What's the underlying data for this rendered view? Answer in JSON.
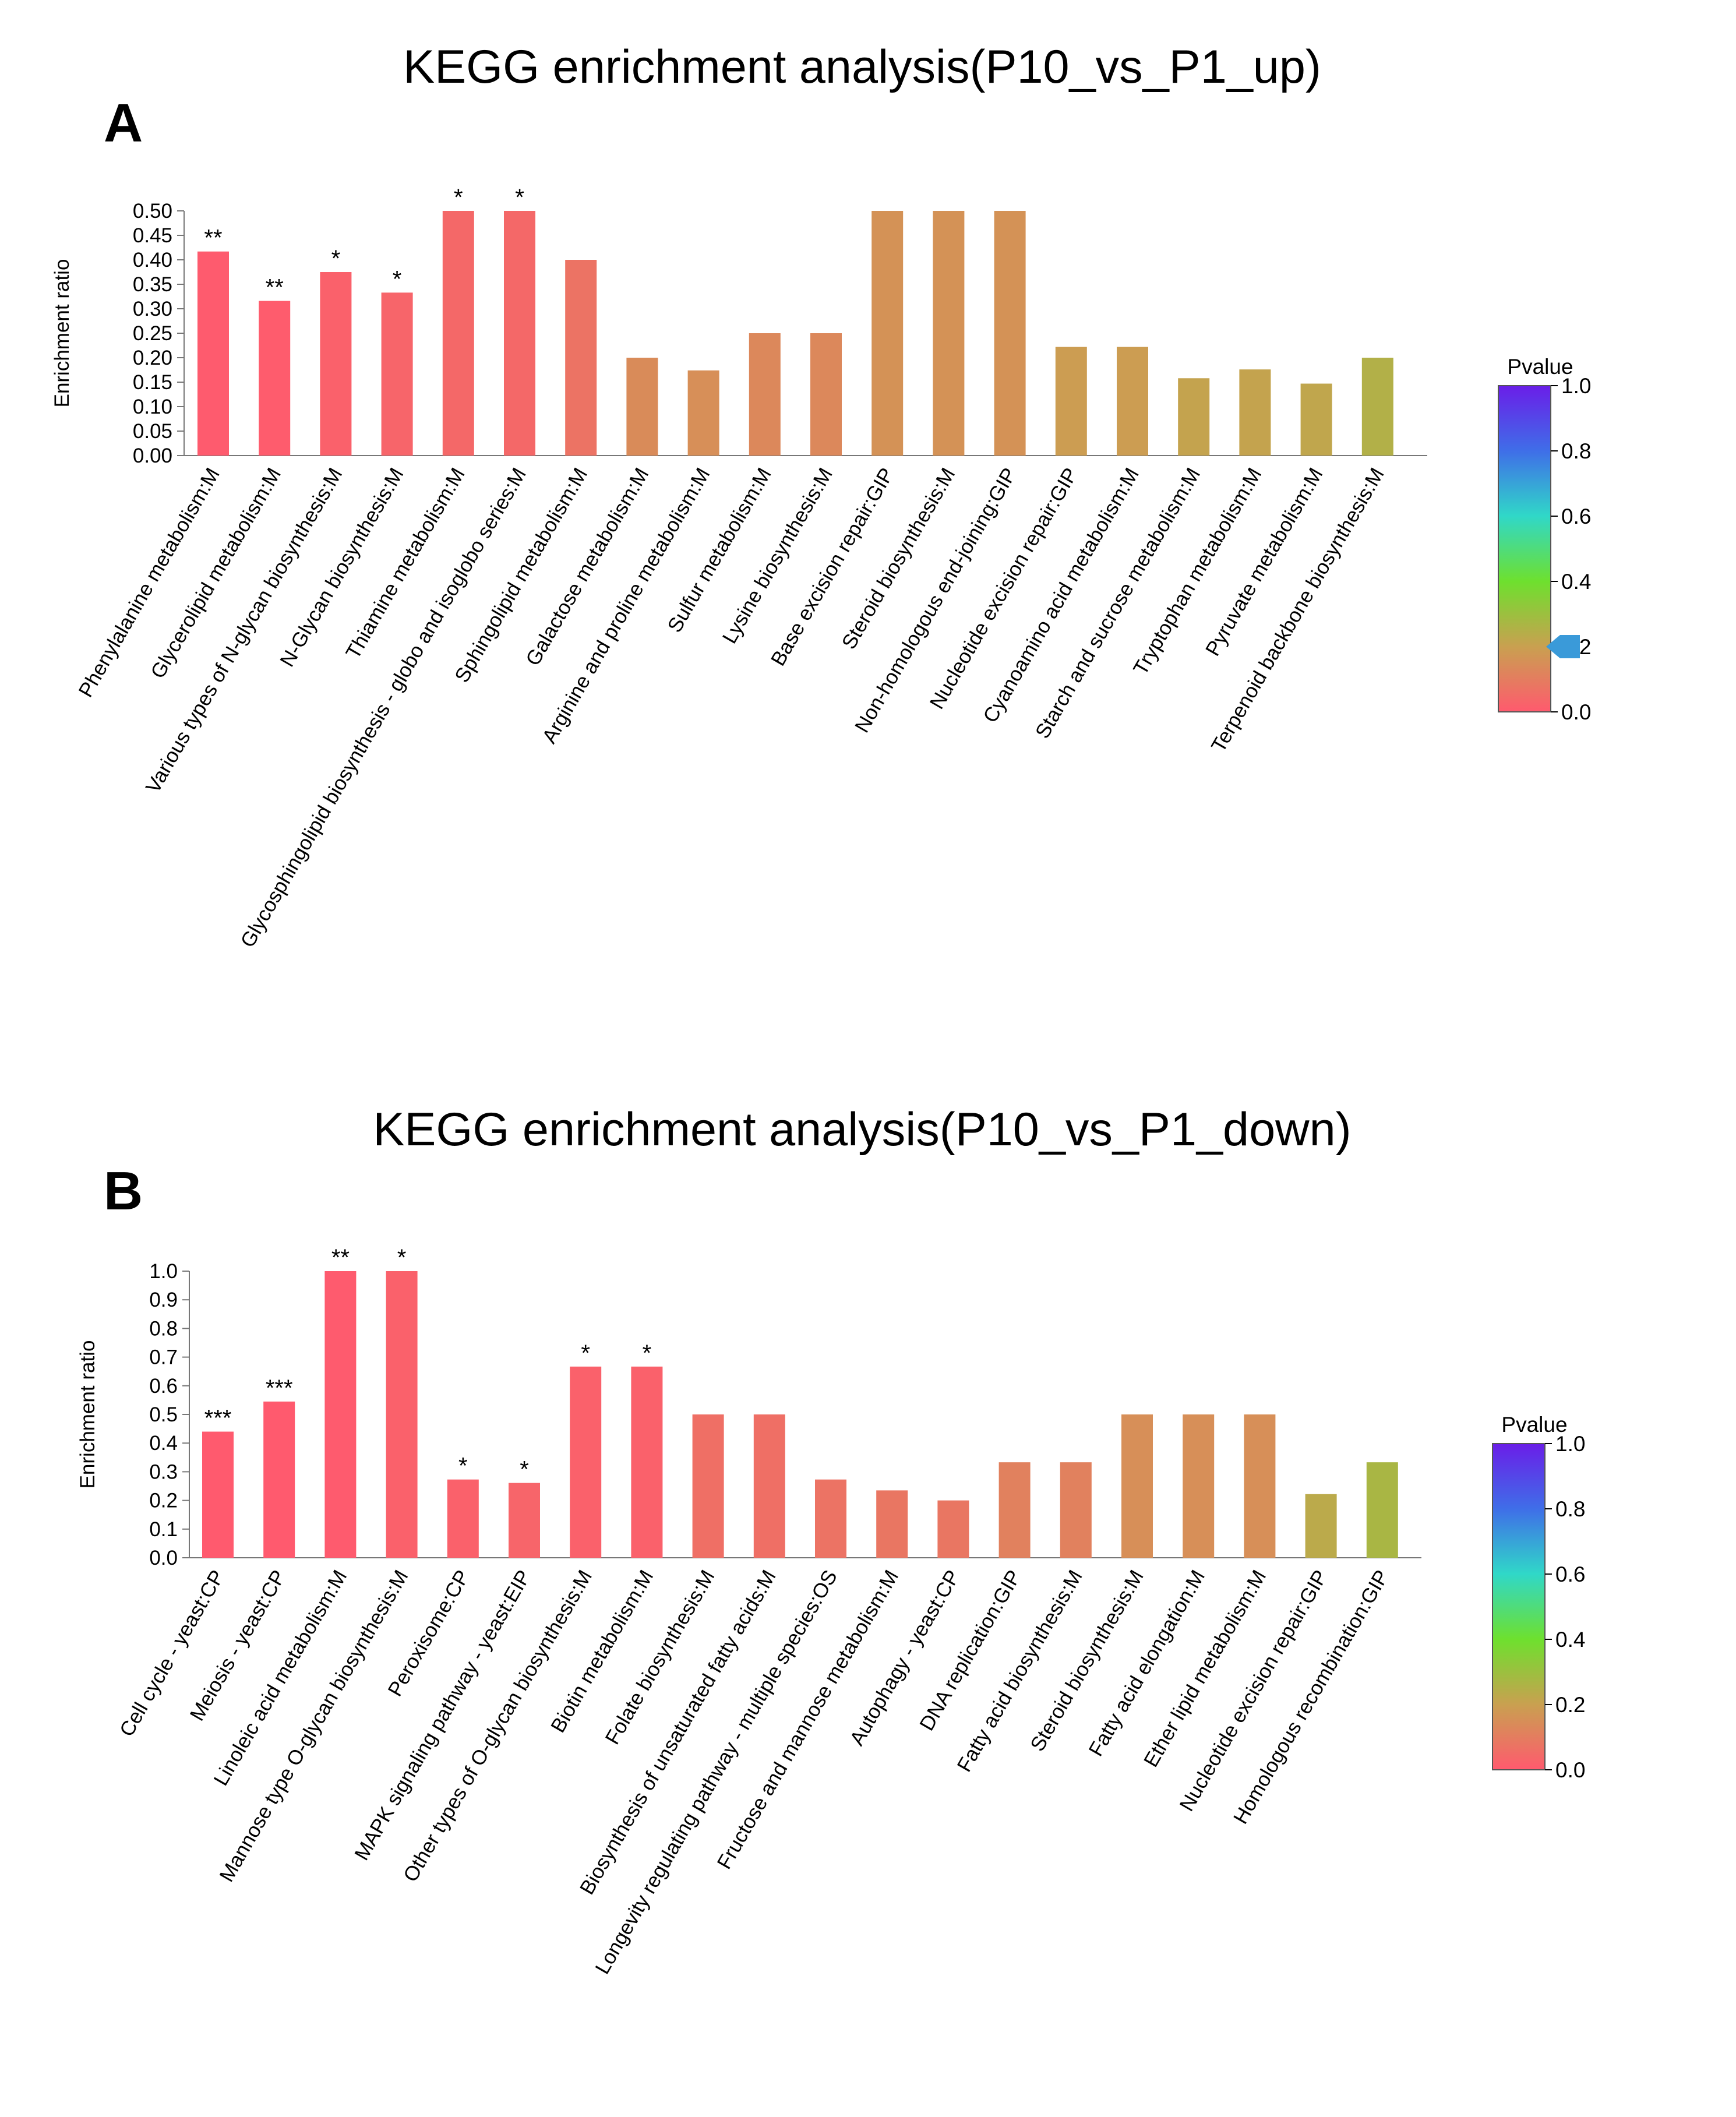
{
  "chart_data": [
    {
      "type": "bar",
      "panel_label": "A",
      "title": "KEGG enrichment analysis(P10_vs_P1_up)",
      "xlabel": "",
      "ylabel": "Enrichment ratio",
      "ylim": [
        0,
        0.5
      ],
      "yticks": [
        "0.00",
        "0.05",
        "0.10",
        "0.15",
        "0.20",
        "0.25",
        "0.30",
        "0.35",
        "0.40",
        "0.45",
        "0.50"
      ],
      "categories": [
        "Phenylalanine metabolism:M",
        "Glycerolipid metabolism:M",
        "Various types of N-glycan biosynthesis:M",
        "N-Glycan biosynthesis:M",
        "Thiamine metabolism:M",
        "Glycosphingolipid biosynthesis - globo and isoglobo series:M",
        "Sphingolipid metabolism:M",
        "Galactose metabolism:M",
        "Arginine and proline metabolism:M",
        "Sulfur metabolism:M",
        "Lysine biosynthesis:M",
        "Base excision repair:GIP",
        "Steroid biosynthesis:M",
        "Non-homologous end-joining:GIP",
        "Nucleotide excision repair:GIP",
        "Cyanoamino acid metabolism:M",
        "Starch and sucrose metabolism:M",
        "Tryptophan metabolism:M",
        "Pyruvate metabolism:M",
        "Terpenoid backbone biosynthesis:M"
      ],
      "values": [
        0.417,
        0.316,
        0.375,
        0.333,
        0.5,
        0.5,
        0.4,
        0.2,
        0.174,
        0.25,
        0.25,
        0.5,
        0.5,
        0.5,
        0.222,
        0.222,
        0.158,
        0.176,
        0.147,
        0.2
      ],
      "pvalues": [
        0.002,
        0.005,
        0.02,
        0.03,
        0.04,
        0.04,
        0.07,
        0.14,
        0.15,
        0.13,
        0.13,
        0.16,
        0.16,
        0.16,
        0.19,
        0.19,
        0.21,
        0.21,
        0.22,
        0.25
      ],
      "significance": [
        "**",
        "**",
        "*",
        "*",
        "*",
        "*",
        "",
        "",
        "",
        "",
        "",
        "",
        "",
        "",
        "",
        "",
        "",
        "",
        "",
        ""
      ],
      "legend": {
        "title": "Pvalue",
        "ticks": [
          "1.0",
          "0.8",
          "0.6",
          "0.4",
          "0.2",
          "0.0"
        ],
        "marker_value": 0.2,
        "marker_color": "#3a9ad9"
      }
    },
    {
      "type": "bar",
      "panel_label": "B",
      "title": "KEGG enrichment analysis(P10_vs_P1_down)",
      "xlabel": "",
      "ylabel": "Enrichment ratio",
      "ylim": [
        0,
        1.0
      ],
      "yticks": [
        "0.0",
        "0.1",
        "0.2",
        "0.3",
        "0.4",
        "0.5",
        "0.6",
        "0.7",
        "0.8",
        "0.9",
        "1.0"
      ],
      "categories": [
        "Cell cycle - yeast:CP",
        "Meiosis - yeast:CP",
        "Linoleic acid metabolism:M",
        "Mannose type O-glycan biosynthesis:M",
        "Peroxisome:CP",
        "MAPK signaling pathway - yeast:EIP",
        "Other types of O-glycan biosynthesis:M",
        "Biotin metabolism:M",
        "Folate biosynthesis:M",
        "Biosynthesis of unsaturated fatty acids:M",
        "Longevity regulating pathway - multiple species:OS",
        "Fructose and mannose metabolism:M",
        "Autophagy - yeast:CP",
        "DNA replication:GIP",
        "Fatty acid biosynthesis:M",
        "Steroid biosynthesis:M",
        "Fatty acid elongation:M",
        "Ether lipid metabolism:M",
        "Nucleotide excision repair:GIP",
        "Homologous recombination:GIP"
      ],
      "values": [
        0.44,
        0.545,
        1.0,
        1.0,
        0.273,
        0.261,
        0.667,
        0.667,
        0.5,
        0.5,
        0.273,
        0.235,
        0.2,
        0.333,
        0.333,
        0.5,
        0.5,
        0.5,
        0.222,
        0.333
      ],
      "pvalues": [
        0.0005,
        0.0008,
        0.003,
        0.02,
        0.02,
        0.03,
        0.02,
        0.02,
        0.06,
        0.06,
        0.07,
        0.08,
        0.08,
        0.11,
        0.11,
        0.15,
        0.15,
        0.15,
        0.23,
        0.27
      ],
      "significance": [
        "***",
        "***",
        "**",
        "*",
        "*",
        "*",
        "*",
        "*",
        "",
        "",
        "",
        "",
        "",
        "",
        "",
        "",
        "",
        "",
        "",
        ""
      ],
      "legend": {
        "title": "Pvalue",
        "ticks": [
          "1.0",
          "0.8",
          "0.6",
          "0.4",
          "0.2",
          "0.0"
        ]
      }
    }
  ]
}
